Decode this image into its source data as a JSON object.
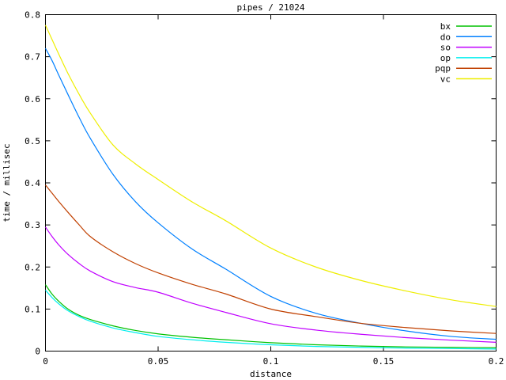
{
  "window": {
    "title": "pipes / 21024"
  },
  "chart_data": {
    "type": "line",
    "title": "pipes / 21024",
    "xlabel": "distance",
    "ylabel": "time / millisec",
    "xlim": [
      0,
      0.2
    ],
    "ylim": [
      0,
      0.8
    ],
    "xticks": [
      0,
      0.05,
      0.1,
      0.15,
      0.2
    ],
    "xtick_labels": [
      "0",
      "0.05",
      "0.1",
      "0.15",
      "0.2"
    ],
    "yticks": [
      0,
      0.1,
      0.2,
      0.3,
      0.4,
      0.5,
      0.6,
      0.7,
      0.8
    ],
    "ytick_labels": [
      "0",
      "0.1",
      "0.2",
      "0.3",
      "0.4",
      "0.5",
      "0.6",
      "0.7",
      "0.8"
    ],
    "grid": false,
    "legend_position": "top-right-inside",
    "background_color": "#ffffff",
    "border_color": "#000000",
    "x": [
      0,
      0.003,
      0.006,
      0.01,
      0.015,
      0.02,
      0.03,
      0.04,
      0.05,
      0.065,
      0.08,
      0.1,
      0.12,
      0.14,
      0.16,
      0.18,
      0.2
    ],
    "series": [
      {
        "name": "bx",
        "color": "#00c000",
        "values": [
          0.158,
          0.135,
          0.118,
          0.1,
          0.085,
          0.075,
          0.06,
          0.049,
          0.041,
          0.033,
          0.027,
          0.02,
          0.015,
          0.012,
          0.01,
          0.009,
          0.008
        ]
      },
      {
        "name": "do",
        "color": "#0080ff",
        "values": [
          0.72,
          0.69,
          0.655,
          0.61,
          0.555,
          0.505,
          0.42,
          0.355,
          0.305,
          0.243,
          0.195,
          0.13,
          0.09,
          0.066,
          0.048,
          0.035,
          0.028
        ]
      },
      {
        "name": "so",
        "color": "#c000ff",
        "values": [
          0.295,
          0.272,
          0.252,
          0.23,
          0.208,
          0.19,
          0.165,
          0.151,
          0.14,
          0.114,
          0.092,
          0.065,
          0.05,
          0.04,
          0.032,
          0.026,
          0.021
        ]
      },
      {
        "name": "op",
        "color": "#00eeee",
        "values": [
          0.145,
          0.127,
          0.112,
          0.096,
          0.082,
          0.071,
          0.055,
          0.044,
          0.035,
          0.027,
          0.021,
          0.015,
          0.011,
          0.009,
          0.007,
          0.006,
          0.005
        ]
      },
      {
        "name": "pqp",
        "color": "#c04000",
        "values": [
          0.395,
          0.375,
          0.355,
          0.33,
          0.3,
          0.272,
          0.236,
          0.208,
          0.186,
          0.159,
          0.136,
          0.1,
          0.082,
          0.066,
          0.056,
          0.048,
          0.042
        ]
      },
      {
        "name": "vc",
        "color": "#eeee00",
        "values": [
          0.775,
          0.74,
          0.705,
          0.66,
          0.61,
          0.565,
          0.49,
          0.445,
          0.408,
          0.355,
          0.31,
          0.245,
          0.2,
          0.168,
          0.143,
          0.122,
          0.106
        ]
      }
    ]
  }
}
